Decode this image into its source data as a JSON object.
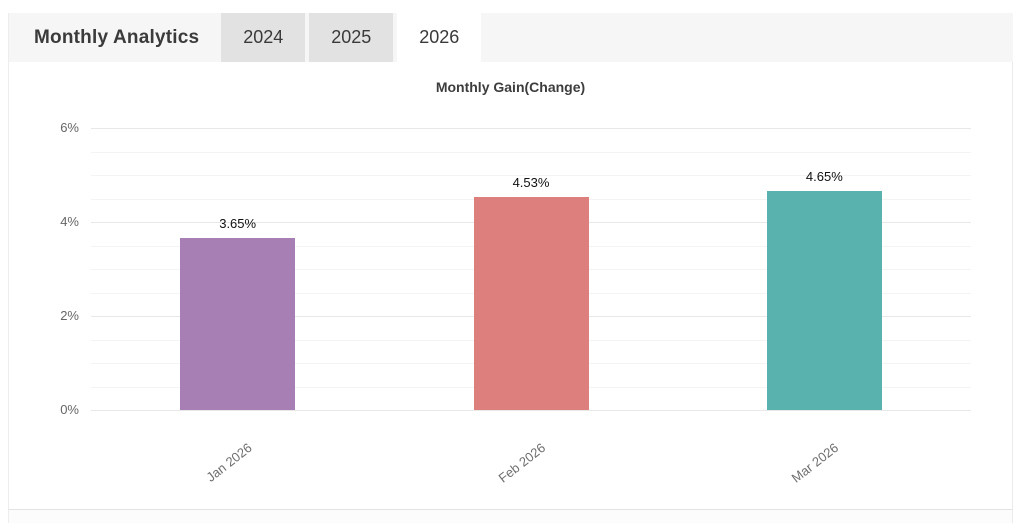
{
  "header": {
    "title": "Monthly Analytics",
    "tabs": [
      {
        "label": "2024",
        "active": false
      },
      {
        "label": "2025",
        "active": false
      },
      {
        "label": "2026",
        "active": true
      }
    ]
  },
  "chart_data": {
    "type": "bar",
    "title": "Monthly Gain(Change)",
    "categories": [
      "Jan 2026",
      "Feb 2026",
      "Mar 2026"
    ],
    "values": [
      3.65,
      4.53,
      4.65
    ],
    "value_labels": [
      "3.65%",
      "4.53%",
      "4.65%"
    ],
    "bar_colors": [
      "#a87fb5",
      "#dd807d",
      "#59b2ae"
    ],
    "xlabel": "",
    "ylabel": "",
    "ylim": [
      0,
      6
    ],
    "yticks": [
      {
        "value": 0,
        "label": "0%"
      },
      {
        "value": 2,
        "label": "2%"
      },
      {
        "value": 4,
        "label": "4%"
      },
      {
        "value": 6,
        "label": "6%"
      }
    ],
    "minor_grid_step": 0.5,
    "grid": "on",
    "legend": "none"
  },
  "colors": {
    "header_bg": "#f6f6f6",
    "tab_inactive_bg": "#e2e2e2",
    "tab_active_bg": "#ffffff",
    "grid_major": "#e8e8e8",
    "grid_minor": "#f4f4f4",
    "text_dark": "#3b3b3b",
    "axis_text": "#666666"
  }
}
